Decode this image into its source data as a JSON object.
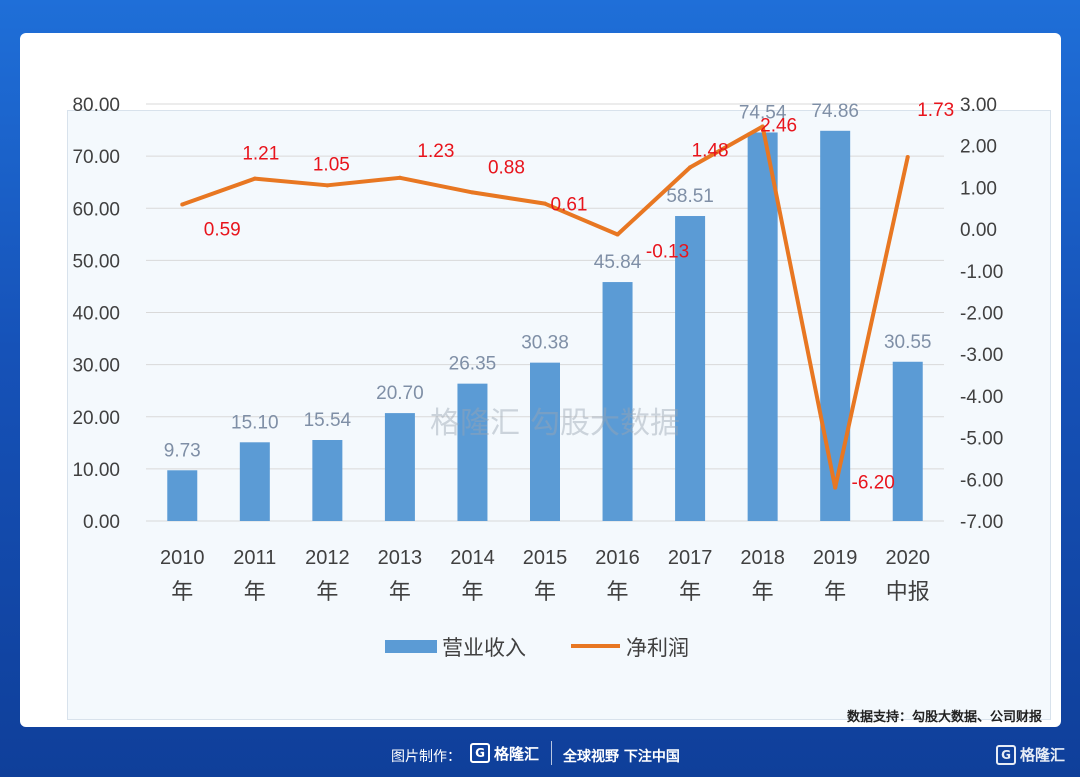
{
  "chart_data": {
    "type": "bar+line",
    "categories": [
      "2010\n年",
      "2011\n年",
      "2012\n年",
      "2013\n年",
      "2014\n年",
      "2015\n年",
      "2016\n年",
      "2017\n年",
      "2018\n年",
      "2019\n年",
      "2020\n中报"
    ],
    "series": [
      {
        "name": "营业收入",
        "type": "bar",
        "axis": "left",
        "color": "#5b9bd5",
        "values": [
          9.73,
          15.1,
          15.54,
          20.7,
          26.35,
          30.38,
          45.84,
          58.51,
          74.54,
          74.86,
          30.55
        ],
        "labels": [
          "9.73",
          "15.10",
          "15.54",
          "20.70",
          "26.35",
          "30.38",
          "45.84",
          "58.51",
          "74.54",
          "74.86",
          "30.55"
        ]
      },
      {
        "name": "净利润",
        "type": "line",
        "axis": "right",
        "color": "#e87722",
        "values": [
          0.59,
          1.21,
          1.05,
          1.23,
          0.88,
          0.61,
          -0.13,
          1.48,
          2.46,
          -6.2,
          1.73
        ],
        "labels": [
          "0.59",
          "1.21",
          "1.05",
          "1.23",
          "0.88",
          "0.61",
          "-0.13",
          "1.48",
          "2.46",
          "-6.20",
          "1.73"
        ],
        "label_color": "#e8141c"
      }
    ],
    "y_left": {
      "min": 0,
      "max": 80,
      "ticks": [
        "0.00",
        "10.00",
        "20.00",
        "30.00",
        "40.00",
        "50.00",
        "60.00",
        "70.00",
        "80.00"
      ]
    },
    "y_right": {
      "min": -7,
      "max": 3,
      "ticks": [
        "-7.00",
        "-6.00",
        "-5.00",
        "-4.00",
        "-3.00",
        "-2.00",
        "-1.00",
        "0.00",
        "1.00",
        "2.00",
        "3.00"
      ]
    },
    "grid": true,
    "legend": "bottom-center"
  },
  "watermark": {
    "brand": "格隆汇",
    "text": "勾股大数据"
  },
  "source_text": "数据支持：勾股大数据、公司财报",
  "footer": {
    "credit_label": "图片制作：",
    "brand": "格隆汇",
    "slogan": "全球视野 下注中国",
    "corner_brand": "格隆汇"
  }
}
